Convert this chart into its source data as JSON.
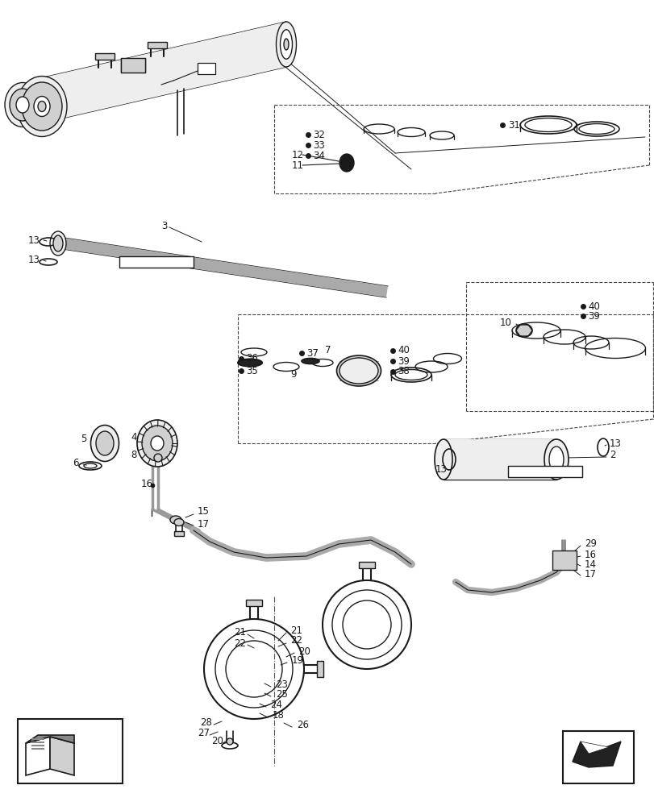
{
  "bg_color": "#ffffff",
  "line_color": "#1a1a1a",
  "gray_fill": "#d0d0d0",
  "light_fill": "#eeeeee",
  "dark_fill": "#333333",
  "figsize": [
    8.12,
    10.0
  ],
  "dpi": 100
}
